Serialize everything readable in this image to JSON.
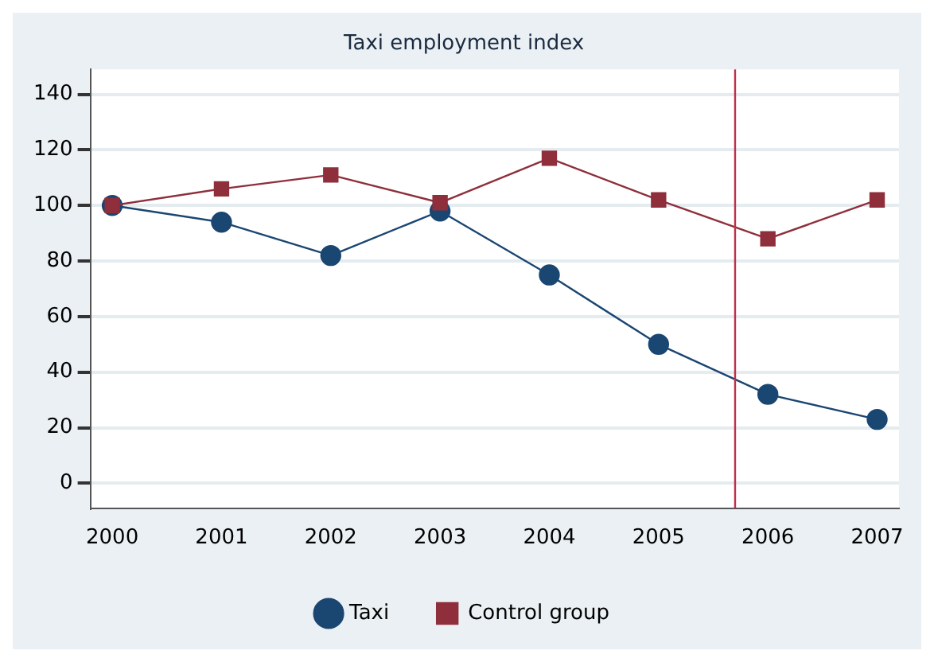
{
  "chart_data": {
    "type": "line",
    "title": "Taxi employment index",
    "x": [
      2000,
      2001,
      2002,
      2003,
      2004,
      2005,
      2006,
      2007
    ],
    "series": [
      {
        "name": "Taxi",
        "color": "#1a4672",
        "values": [
          100,
          94,
          82,
          98,
          75,
          50,
          32,
          23
        ],
        "marker": "circle"
      },
      {
        "name": "Control group",
        "color": "#8e2f3b",
        "values": [
          100,
          106,
          111,
          101,
          117,
          102,
          88,
          102
        ],
        "marker": "square"
      }
    ],
    "xlim": [
      1999.8,
      2007.2
    ],
    "xticks": [
      2000,
      2001,
      2002,
      2003,
      2004,
      2005,
      2006,
      2007
    ],
    "ylim": [
      -9,
      149
    ],
    "yticks": [
      0,
      20,
      40,
      60,
      80,
      100,
      120,
      140
    ],
    "ref_lines": [
      {
        "axis": "x",
        "value": 2005.7,
        "color": "#c0304a"
      }
    ],
    "grid": "y",
    "legend": "bottom",
    "line_style": "solid"
  }
}
